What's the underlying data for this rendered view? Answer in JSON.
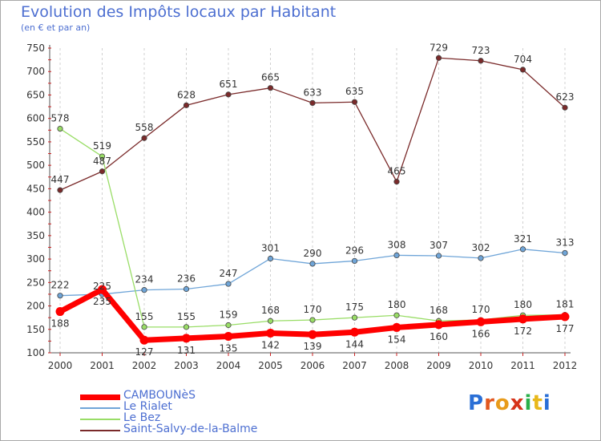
{
  "chart_data": {
    "type": "line",
    "title": "Evolution des Impôts locaux par Habitant",
    "subtitle": "(en € et par an)",
    "xlabel": "",
    "ylabel": "",
    "ylim": [
      100,
      750
    ],
    "yticks": [
      "100",
      "150",
      "200",
      "250",
      "300",
      "350",
      "400",
      "450",
      "500",
      "550",
      "600",
      "650",
      "700",
      "750"
    ],
    "categories": [
      "2000",
      "2001",
      "2002",
      "2003",
      "2004",
      "2005",
      "2006",
      "2007",
      "2008",
      "2009",
      "2010",
      "2011",
      "2012"
    ],
    "grid": "vertical-dashed",
    "legend_position": "bottom-left",
    "series": [
      {
        "name": "CAMBOUNèS",
        "color": "#ff0000",
        "values": [
          188,
          235,
          127,
          131,
          135,
          142,
          139,
          144,
          154,
          160,
          166,
          172,
          177
        ]
      },
      {
        "name": "Le Rialet",
        "color": "#6fa5d8",
        "values": [
          222,
          225,
          234,
          236,
          247,
          301,
          290,
          296,
          308,
          307,
          302,
          321,
          313
        ]
      },
      {
        "name": "Le Bez",
        "color": "#99dd66",
        "values": [
          578,
          519,
          155,
          155,
          159,
          168,
          170,
          175,
          180,
          168,
          170,
          180,
          181
        ]
      },
      {
        "name": "Saint-Salvy-de-la-Balme",
        "color": "#7a2a2a",
        "values": [
          447,
          487,
          558,
          628,
          651,
          665,
          633,
          635,
          465,
          729,
          723,
          704,
          623
        ]
      }
    ]
  },
  "logo": {
    "text": "Proxiti"
  }
}
